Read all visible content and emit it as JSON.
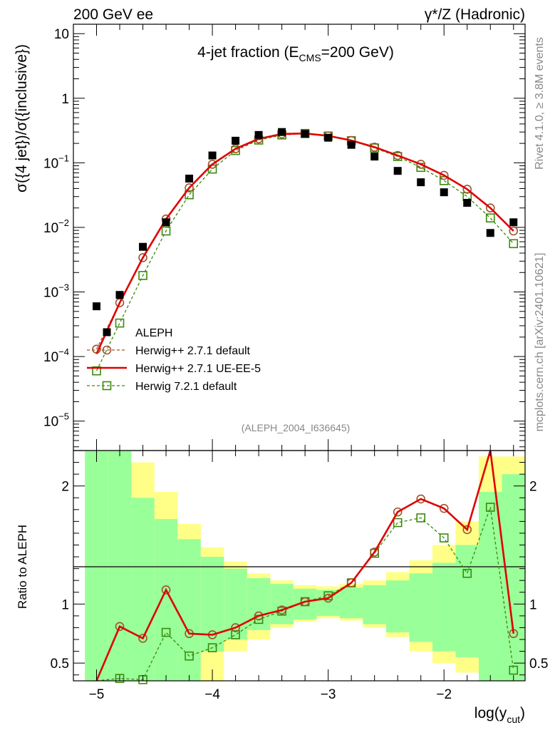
{
  "header": {
    "left_title": "200 GeV ee",
    "right_title": "γ*/Z (Hadronic)"
  },
  "side_labels": {
    "rivet": "Rivet 4.1.0, ≥ 3.8M events",
    "mcplots": "mcplots.cern.ch [arXiv:2401.10621]"
  },
  "colors": {
    "data": "#000000",
    "herwig_default": "#a0522d",
    "herwig_ueee5": "#e00000",
    "herwig72": "#3a8a0a",
    "band_green": "#99ff99",
    "band_yellow": "#ffff88"
  },
  "chart_data": [
    {
      "type": "line",
      "title": "4-jet fraction (E_CMS=200 GeV)",
      "title_parts": {
        "prefix": "4-jet fraction (E",
        "sub": "CMS",
        "suffix": "=200 GeV)"
      },
      "ylabel": "σ({4 jet})/σ({inclusive})",
      "yscale": "log",
      "ylim": [
        3.5e-06,
        14
      ],
      "xlim": [
        -5.2,
        -1.3
      ],
      "yticks": [
        {
          "value": 10,
          "label": "10"
        },
        {
          "value": 1,
          "label": "1"
        },
        {
          "value": 0.1,
          "base": "10",
          "exp": "−1"
        },
        {
          "value": 0.01,
          "base": "10",
          "exp": "−2"
        },
        {
          "value": 0.001,
          "base": "10",
          "exp": "−3"
        },
        {
          "value": 0.0001,
          "base": "10",
          "exp": "−4"
        },
        {
          "value": 1e-05,
          "base": "10",
          "exp": "−5"
        }
      ],
      "watermark": "(ALEPH_2004_I636645)",
      "legend": {
        "placement": "bottom-left",
        "entries": [
          {
            "key": "data",
            "label": "ALEPH"
          },
          {
            "key": "herwig_default",
            "label": "Herwig++ 2.7.1 default"
          },
          {
            "key": "herwig_ueee5",
            "label": "Herwig++ 2.7.1 UE-EE-5"
          },
          {
            "key": "herwig72",
            "label": "Herwig 7.2.1 default"
          }
        ]
      },
      "series": [
        {
          "key": "data",
          "name": "ALEPH",
          "marker": "filled-square",
          "x": [
            -5.0,
            -4.8,
            -4.6,
            -4.4,
            -4.2,
            -4.0,
            -3.8,
            -3.6,
            -3.4,
            -3.2,
            -3.0,
            -2.8,
            -2.6,
            -2.4,
            -2.2,
            -2.0,
            -1.8,
            -1.6,
            -1.4
          ],
          "y": [
            0.0006,
            0.0009,
            0.005,
            0.012,
            0.057,
            0.13,
            0.22,
            0.27,
            0.3,
            0.28,
            0.245,
            0.19,
            0.125,
            0.075,
            0.05,
            0.035,
            0.024,
            0.0082,
            0.012
          ]
        },
        {
          "key": "herwig_default",
          "name": "Herwig++ 2.7.1 default",
          "marker": "open-circle",
          "line": "dashed",
          "x": [
            -5.0,
            -4.8,
            -4.6,
            -4.4,
            -4.2,
            -4.0,
            -3.8,
            -3.6,
            -3.4,
            -3.2,
            -3.0,
            -2.8,
            -2.6,
            -2.4,
            -2.2,
            -2.0,
            -1.8,
            -1.6,
            -1.4
          ],
          "y": [
            0.00013,
            0.00068,
            0.0034,
            0.0135,
            0.041,
            0.095,
            0.165,
            0.235,
            0.28,
            0.285,
            0.262,
            0.222,
            0.175,
            0.13,
            0.095,
            0.064,
            0.039,
            0.02,
            0.0088
          ]
        },
        {
          "key": "herwig_ueee5",
          "name": "Herwig++ 2.7.1 UE-EE-5",
          "marker": "none",
          "line": "solid",
          "x": [
            -5.0,
            -4.8,
            -4.6,
            -4.4,
            -4.2,
            -4.0,
            -3.8,
            -3.6,
            -3.4,
            -3.2,
            -3.0,
            -2.8,
            -2.6,
            -2.4,
            -2.2,
            -2.0,
            -1.8,
            -1.6,
            -1.4
          ],
          "y": [
            0.00011,
            0.00068,
            0.0034,
            0.0135,
            0.041,
            0.095,
            0.165,
            0.235,
            0.28,
            0.285,
            0.262,
            0.222,
            0.175,
            0.13,
            0.095,
            0.064,
            0.039,
            0.02,
            0.0088
          ]
        },
        {
          "key": "herwig72",
          "name": "Herwig 7.2.1 default",
          "marker": "open-square",
          "line": "dashed",
          "x": [
            -5.0,
            -4.8,
            -4.6,
            -4.4,
            -4.2,
            -4.0,
            -3.8,
            -3.6,
            -3.4,
            -3.2,
            -3.0,
            -2.8,
            -2.6,
            -2.4,
            -2.2,
            -2.0,
            -1.8,
            -1.6,
            -1.4
          ],
          "y": [
            6e-05,
            0.00033,
            0.0018,
            0.0088,
            0.032,
            0.08,
            0.155,
            0.225,
            0.27,
            0.285,
            0.26,
            0.22,
            0.17,
            0.125,
            0.085,
            0.053,
            0.03,
            0.014,
            0.0056
          ]
        }
      ]
    },
    {
      "type": "line",
      "ylabel": "Ratio to ALEPH",
      "xlabel": "log(y_cut)",
      "xlabel_parts": {
        "prefix": "log(y",
        "sub": "cut",
        "suffix": ")"
      },
      "ylim": [
        0.35,
        2.3
      ],
      "xlim": [
        -5.2,
        -1.3
      ],
      "reference_line": 1,
      "yticks": [
        {
          "value": 2,
          "label": "2"
        },
        {
          "value": 1,
          "label": "1"
        },
        {
          "value": 0.5,
          "label": "0.5"
        }
      ],
      "xticks": [
        {
          "value": -5,
          "label": "−5"
        },
        {
          "value": -4,
          "label": "−4"
        },
        {
          "value": -3,
          "label": "−3"
        },
        {
          "value": -2,
          "label": "−2"
        }
      ],
      "bands": {
        "edges": [
          -5.1,
          -4.9,
          -4.7,
          -4.5,
          -4.3,
          -4.1,
          -3.9,
          -3.7,
          -3.5,
          -3.3,
          -3.1,
          -2.9,
          -2.7,
          -2.5,
          -2.3,
          -2.1,
          -1.9,
          -1.7,
          -1.5,
          -1.3
        ],
        "green_lo": [
          0.35,
          0.35,
          0.35,
          0.35,
          0.35,
          0.6,
          0.7,
          0.78,
          0.83,
          0.87,
          0.9,
          0.88,
          0.83,
          0.76,
          0.68,
          0.6,
          0.55,
          0.35,
          0.35
        ],
        "green_hi": [
          2.3,
          2.3,
          1.9,
          1.72,
          1.55,
          1.4,
          1.3,
          1.22,
          1.17,
          1.13,
          1.12,
          1.14,
          1.16,
          1.2,
          1.26,
          1.35,
          1.5,
          1.95,
          2.1
        ],
        "yellow_lo": [
          0.35,
          0.35,
          0.35,
          0.35,
          0.35,
          0.35,
          0.6,
          0.7,
          0.8,
          0.85,
          0.88,
          0.86,
          0.8,
          0.72,
          0.6,
          0.5,
          0.42,
          0.35,
          0.35
        ],
        "yellow_hi": [
          2.3,
          2.3,
          2.2,
          1.95,
          1.68,
          1.48,
          1.36,
          1.26,
          1.2,
          1.16,
          1.15,
          1.17,
          1.2,
          1.27,
          1.37,
          1.5,
          1.7,
          2.25,
          2.25
        ]
      },
      "series": [
        {
          "key": "herwig_default",
          "name": "Herwig++ 2.7.1 default",
          "marker": "open-circle",
          "line": "dashed",
          "x": [
            -5.0,
            -4.8,
            -4.6,
            -4.4,
            -4.2,
            -4.0,
            -3.8,
            -3.6,
            -3.4,
            -3.2,
            -3.0,
            -2.8,
            -2.6,
            -2.4,
            -2.2,
            -2.0,
            -1.8,
            -1.6,
            -1.4
          ],
          "y": [
            0.22,
            0.81,
            0.71,
            1.12,
            0.75,
            0.74,
            0.8,
            0.9,
            0.95,
            1.02,
            1.05,
            1.18,
            1.44,
            1.78,
            1.89,
            1.81,
            1.63,
            2.32,
            0.75
          ]
        },
        {
          "key": "herwig_ueee5",
          "name": "Herwig++ 2.7.1 UE-EE-5",
          "marker": "none",
          "line": "solid",
          "x": [
            -5.0,
            -4.8,
            -4.6,
            -4.4,
            -4.2,
            -4.0,
            -3.8,
            -3.6,
            -3.4,
            -3.2,
            -3.0,
            -2.8,
            -2.6,
            -2.4,
            -2.2,
            -2.0,
            -1.8,
            -1.6,
            -1.4
          ],
          "y": [
            0.19,
            0.81,
            0.71,
            1.12,
            0.75,
            0.74,
            0.8,
            0.9,
            0.95,
            1.02,
            1.05,
            1.18,
            1.44,
            1.78,
            1.89,
            1.81,
            1.63,
            2.32,
            0.75
          ]
        },
        {
          "key": "herwig72",
          "name": "Herwig 7.2.1 default",
          "marker": "open-square",
          "line": "dashed",
          "x": [
            -5.0,
            -4.8,
            -4.6,
            -4.4,
            -4.2,
            -4.0,
            -3.8,
            -3.6,
            -3.4,
            -3.2,
            -3.0,
            -2.8,
            -2.6,
            -2.4,
            -2.2,
            -2.0,
            -1.8,
            -1.6,
            -1.4
          ],
          "y": [
            0.1,
            0.37,
            0.36,
            0.76,
            0.56,
            0.63,
            0.74,
            0.87,
            0.94,
            1.02,
            1.07,
            1.18,
            1.43,
            1.69,
            1.73,
            1.56,
            1.26,
            1.82,
            0.44
          ]
        }
      ]
    }
  ]
}
